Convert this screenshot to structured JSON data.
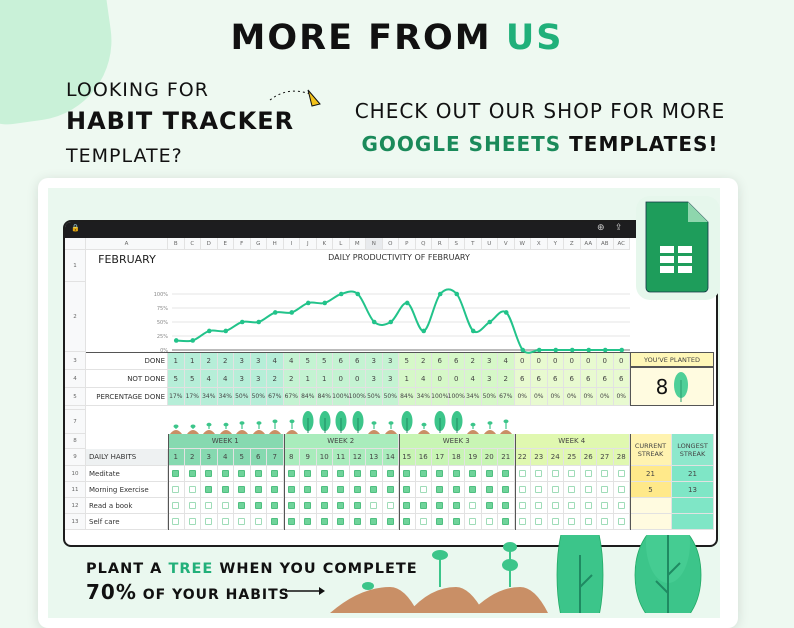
{
  "header": {
    "title_main": "MORE FROM ",
    "title_accent": "US"
  },
  "left_text": {
    "line1": "LOOKING FOR",
    "line2": "HABIT TRACKER",
    "line3": "TEMPLATE?"
  },
  "right_text": {
    "line1": "CHECK OUT OUR SHOP FOR MORE",
    "line2_accent": "GOOGLE SHEETS",
    "line2_rest": " TEMPLATES!"
  },
  "colors": {
    "accent": "#20b07a",
    "sheets_green": "#1e9d5b",
    "line": "#22c38a"
  },
  "sheet": {
    "columns": [
      "A",
      "B",
      "C",
      "D",
      "E",
      "F",
      "G",
      "H",
      "I",
      "J",
      "K",
      "L",
      "M",
      "N",
      "O",
      "P",
      "Q",
      "R",
      "S",
      "T",
      "U",
      "V",
      "W",
      "X",
      "Y",
      "Z",
      "AA",
      "AB",
      "AC"
    ],
    "month": "FEBRUARY",
    "chart_title": "DAILY PRODUCTIVITY OF FEBRUARY",
    "row_labels": {
      "done": "DONE",
      "not_done": "NOT DONE",
      "pct": "PERCENTAGE DONE",
      "habits": "DAILY HABITS"
    },
    "done": [
      1,
      1,
      2,
      2,
      3,
      3,
      4,
      4,
      5,
      5,
      6,
      6,
      3,
      3,
      5,
      2,
      6,
      6,
      2,
      3,
      4,
      0,
      0,
      0,
      0,
      0,
      0,
      0
    ],
    "not_done": [
      5,
      5,
      4,
      4,
      3,
      3,
      2,
      2,
      1,
      1,
      0,
      0,
      3,
      3,
      1,
      4,
      0,
      0,
      4,
      3,
      2,
      6,
      6,
      6,
      6,
      6,
      6,
      6
    ],
    "pct": [
      "17%",
      "17%",
      "34%",
      "34%",
      "50%",
      "50%",
      "67%",
      "67%",
      "84%",
      "84%",
      "100%",
      "100%",
      "50%",
      "50%",
      "84%",
      "34%",
      "100%",
      "100%",
      "34%",
      "50%",
      "67%",
      "0%",
      "0%",
      "0%",
      "0%",
      "0%",
      "0%",
      "0%"
    ],
    "planted": {
      "label": "YOU'VE PLANTED",
      "count": "8"
    },
    "weeks": [
      "WEEK 1",
      "WEEK 2",
      "WEEK 3",
      "WEEK 4"
    ],
    "streak_headers": {
      "current": "CURRENT STREAK",
      "longest": "LONGEST STREAK"
    },
    "habits": [
      {
        "name": "Meditate",
        "checks": [
          1,
          1,
          1,
          1,
          1,
          1,
          1,
          1,
          1,
          1,
          1,
          1,
          1,
          1,
          1,
          1,
          1,
          1,
          1,
          1,
          1,
          0,
          0,
          0,
          0,
          0,
          0,
          0
        ],
        "current": "21",
        "longest": "21"
      },
      {
        "name": "Morning Exercise",
        "checks": [
          0,
          0,
          1,
          1,
          1,
          1,
          1,
          1,
          1,
          1,
          1,
          1,
          1,
          1,
          1,
          0,
          1,
          1,
          1,
          1,
          1,
          0,
          0,
          0,
          0,
          0,
          0,
          0
        ],
        "current": "5",
        "longest": "13"
      },
      {
        "name": "Read a book",
        "checks": [
          0,
          0,
          0,
          0,
          1,
          1,
          1,
          1,
          1,
          1,
          1,
          1,
          0,
          0,
          1,
          1,
          1,
          1,
          0,
          1,
          1,
          0,
          0,
          0,
          0,
          0,
          0,
          0
        ],
        "current": "",
        "longest": ""
      },
      {
        "name": "Self care",
        "checks": [
          0,
          0,
          0,
          0,
          0,
          0,
          1,
          1,
          1,
          1,
          1,
          1,
          1,
          1,
          1,
          0,
          1,
          1,
          0,
          0,
          1,
          0,
          0,
          0,
          0,
          0,
          0,
          0
        ],
        "current": "",
        "longest": ""
      }
    ]
  },
  "chart_data": {
    "type": "line",
    "title": "DAILY PRODUCTIVITY OF FEBRUARY",
    "x": [
      1,
      2,
      3,
      4,
      5,
      6,
      7,
      8,
      9,
      10,
      11,
      12,
      13,
      14,
      15,
      16,
      17,
      18,
      19,
      20,
      21,
      22,
      23,
      24,
      25,
      26,
      27,
      28
    ],
    "values": [
      17,
      17,
      34,
      34,
      50,
      50,
      67,
      67,
      84,
      84,
      100,
      100,
      50,
      50,
      84,
      34,
      100,
      100,
      34,
      50,
      67,
      0,
      0,
      0,
      0,
      0,
      0,
      0
    ],
    "yticks": [
      "0%",
      "25%",
      "50%",
      "75%",
      "100%"
    ],
    "ylim": [
      0,
      100
    ],
    "grid": true
  },
  "bottom": {
    "line1_a": "PLANT A ",
    "line1_accent": "TREE",
    "line1_b": " WHEN YOU COMPLETE",
    "line2_big": "70%",
    "line2_rest": " OF YOUR HABITS"
  }
}
